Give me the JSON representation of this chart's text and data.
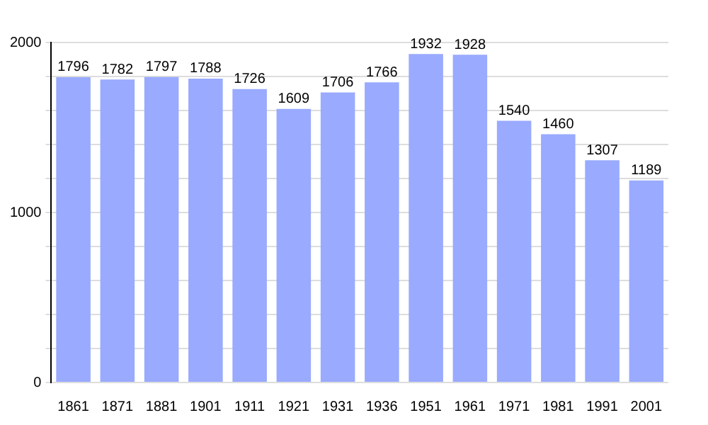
{
  "chart_data": {
    "type": "bar",
    "categories": [
      "1861",
      "1871",
      "1881",
      "1901",
      "1911",
      "1921",
      "1931",
      "1936",
      "1951",
      "1961",
      "1971",
      "1981",
      "1991",
      "2001"
    ],
    "values": [
      1796,
      1782,
      1797,
      1788,
      1726,
      1609,
      1706,
      1766,
      1932,
      1928,
      1540,
      1460,
      1307,
      1189
    ],
    "color": "#99aaff",
    "ylim": [
      0,
      2000
    ],
    "yticks": [
      0,
      {
        "value": 200,
        "label": null
      },
      {
        "value": 400,
        "label": null
      },
      {
        "value": 600,
        "label": null
      },
      {
        "value": 800,
        "label": null
      },
      1000,
      {
        "value": 1200,
        "label": null
      },
      {
        "value": 1400,
        "label": null
      },
      {
        "value": 1600,
        "label": null
      },
      {
        "value": 1800,
        "label": null
      },
      2000
    ],
    "grid": "y",
    "data_labels": true
  }
}
